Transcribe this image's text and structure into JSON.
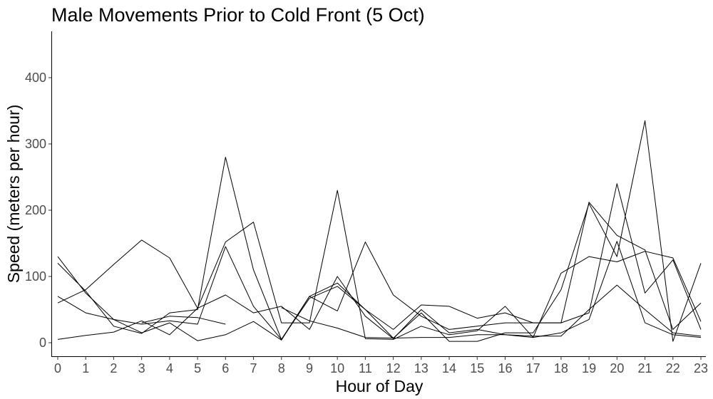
{
  "chart_data": {
    "type": "line",
    "title": "Male Movements Prior to Cold Front (5 Oct)",
    "xlabel": "Hour of Day",
    "ylabel": "Speed (meters per hour)",
    "x": [
      0,
      1,
      2,
      3,
      4,
      5,
      6,
      7,
      8,
      9,
      10,
      11,
      12,
      13,
      14,
      15,
      16,
      17,
      18,
      19,
      20,
      21,
      22,
      23
    ],
    "xlim": [
      0,
      23
    ],
    "ylim": [
      0,
      400
    ],
    "yticks": [
      0,
      100,
      200,
      300,
      400
    ],
    "grid": false,
    "line_color": "#000000",
    "series": [
      {
        "values": [
          120,
          78,
          25,
          14,
          45,
          50,
          280,
          110,
          5,
          70,
          90,
          50,
          7,
          45,
          2,
          2,
          15,
          15,
          80,
          210,
          130,
          335,
          2,
          120
        ]
      },
      {
        "values": [
          60,
          80,
          118,
          155,
          128,
          52,
          152,
          182,
          30,
          30,
          230,
          6,
          5,
          25,
          12,
          18,
          55,
          8,
          105,
          130,
          122,
          138,
          128,
          32
        ]
      },
      {
        "values": [
          130,
          75,
          35,
          28,
          33,
          28,
          145,
          55,
          5,
          67,
          85,
          50,
          20,
          57,
          55,
          37,
          45,
          30,
          30,
          212,
          162,
          140,
          20,
          60
        ]
      },
      {
        "values": [
          70,
          45,
          35,
          15,
          30,
          3,
          12,
          32,
          4,
          70,
          48,
          152,
          72,
          40,
          20,
          25,
          30,
          30,
          30,
          45,
          240,
          75,
          125,
          20
        ]
      },
      {
        "values": [
          5,
          11,
          16,
          33,
          12,
          52,
          72,
          45,
          55,
          20,
          100,
          40,
          6,
          50,
          15,
          20,
          12,
          8,
          15,
          35,
          153,
          30,
          12,
          8
        ]
      },
      {
        "values": [
          null,
          null,
          null,
          30,
          40,
          38,
          28,
          null,
          null,
          null,
          null,
          null,
          null,
          null,
          null,
          null,
          null,
          null,
          null,
          null,
          null,
          null,
          null,
          null
        ]
      },
      {
        "values": [
          null,
          null,
          null,
          null,
          null,
          null,
          null,
          null,
          53,
          33,
          22,
          8,
          7,
          8,
          8,
          12,
          12,
          10,
          10,
          50,
          87,
          50,
          15,
          10
        ]
      }
    ]
  }
}
